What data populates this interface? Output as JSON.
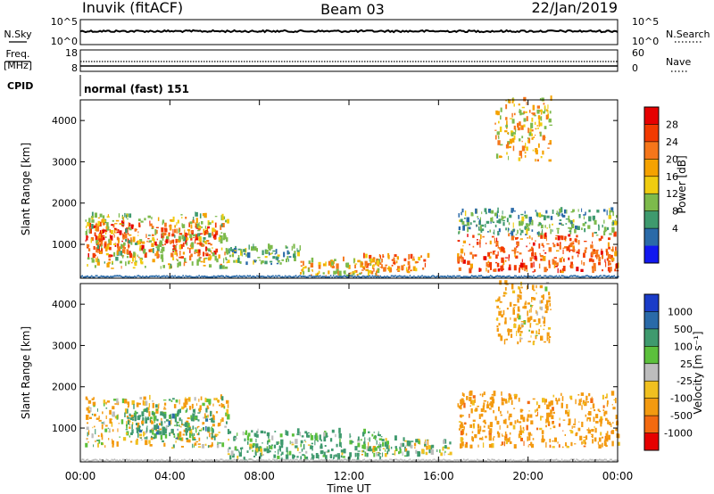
{
  "header": {
    "station": "Inuvik (fitACF)",
    "beam": "Beam 03",
    "date": "22/Jan/2019"
  },
  "nsky_panel": {
    "left_label": "N.Sky",
    "left_ticks": [
      "10^5",
      "10^0"
    ],
    "right_label": "N.Search",
    "right_ticks": [
      "10^5",
      "10^0"
    ]
  },
  "freq_panel": {
    "left_label_1": "Freq.",
    "left_label_2": "[MHz]",
    "left_ticks": [
      "18",
      "8"
    ],
    "right_label": "Nave",
    "right_ticks": [
      "60",
      "0"
    ]
  },
  "cpid": {
    "label": "CPID",
    "value": "normal (fast) 151"
  },
  "power_panel": {
    "ylabel": "Slant Range [km]",
    "colorbar_label": "Power [dB]",
    "colorbar_ticks": [
      "28",
      "24",
      "20",
      "16",
      "12",
      "8",
      "4"
    ],
    "colors": [
      "#e60000",
      "#f23a00",
      "#f5761a",
      "#f5a200",
      "#f0cc10",
      "#7dba4c",
      "#3f9a6e",
      "#2a6aa8",
      "#1218f0"
    ]
  },
  "velocity_panel": {
    "ylabel": "Slant Range [km]",
    "colorbar_label": "Velocity [m s⁻¹]",
    "colorbar_ticks": [
      "1000",
      "500",
      "100",
      "25",
      "-25",
      "-100",
      "-500",
      "-1000"
    ],
    "colors": [
      "#1a3cc8",
      "#2a6aa8",
      "#3f9a6e",
      "#5cc03c",
      "#bdbdbd",
      "#f0c020",
      "#f39a10",
      "#f36a10",
      "#e60000"
    ]
  },
  "xaxis": {
    "label": "Time UT",
    "ticks": [
      "00:00",
      "04:00",
      "08:00",
      "12:00",
      "16:00",
      "20:00",
      "00:00"
    ]
  },
  "chart_data": {
    "type": "heatmap",
    "x_range_hours": [
      0,
      24
    ],
    "y_range_km": [
      180,
      4500
    ],
    "y_ticks": [
      1000,
      2000,
      3000,
      4000
    ],
    "power_regions": [
      {
        "t0": 0.2,
        "t1": 6.2,
        "r0": 650,
        "r1": 1450,
        "db": 26
      },
      {
        "t0": 0.2,
        "t1": 6.6,
        "r0": 400,
        "r1": 1700,
        "db": 16
      },
      {
        "t0": 6.5,
        "t1": 9.8,
        "r0": 500,
        "r1": 900,
        "db": 12
      },
      {
        "t0": 9.8,
        "t1": 13.5,
        "r0": 200,
        "r1": 600,
        "db": 18
      },
      {
        "t0": 12.5,
        "t1": 15.5,
        "r0": 300,
        "r1": 700,
        "db": 22
      },
      {
        "t0": 16.8,
        "t1": 24.0,
        "r0": 300,
        "r1": 1200,
        "db": 24
      },
      {
        "t0": 16.8,
        "t1": 24.0,
        "r0": 1200,
        "r1": 1800,
        "db": 12
      },
      {
        "t0": 18.5,
        "t1": 21.0,
        "r0": 3000,
        "r1": 4500,
        "db": 18
      }
    ],
    "velocity_regions": [
      {
        "t0": 0.2,
        "t1": 6.6,
        "r0": 500,
        "r1": 1700,
        "v": -100
      },
      {
        "t0": 2.0,
        "t1": 6.0,
        "r0": 700,
        "r1": 1400,
        "v": 300
      },
      {
        "t0": 6.5,
        "t1": 13.5,
        "r0": 200,
        "r1": 900,
        "v": 200
      },
      {
        "t0": 12.5,
        "t1": 16.5,
        "r0": 300,
        "r1": 700,
        "v": 100
      },
      {
        "t0": 16.8,
        "t1": 24.0,
        "r0": 500,
        "r1": 1800,
        "v": -300
      },
      {
        "t0": 18.5,
        "t1": 21.0,
        "r0": 3000,
        "r1": 4500,
        "v": -200
      }
    ]
  }
}
